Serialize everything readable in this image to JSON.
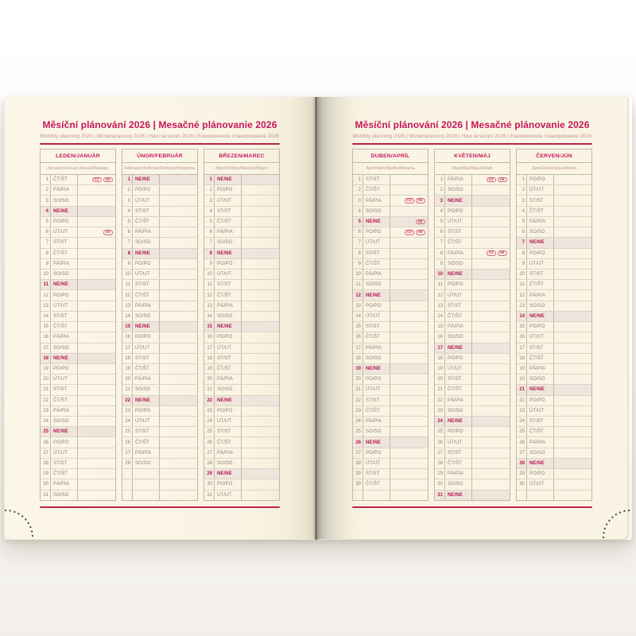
{
  "header": {
    "title": "Měsíční plánování 2026 | Mesačné plánovanie 2026",
    "subtitle": "Monthly planning 2026 | Monatsplanung 2026 | Havi tervezés 2026 | Ежемесячное планирование 2026"
  },
  "colors": {
    "accent": "#c4175c",
    "rule": "#b52450",
    "sunday_text": "#b51a4d",
    "sunday_row_bg": "#efe5dd",
    "day_text": "#8d8275",
    "language_text": "#c4948c",
    "table_border": "#c3b8a5",
    "page_background": "#faf4e4",
    "holiday_badge": "#bb2a55"
  },
  "holiday_badge_labels": [
    "CZ",
    "SK"
  ],
  "months": [
    {
      "name": "LEDEN/JANUÁR",
      "languages": "January/Januar/Január/Январь",
      "rows": [
        [
          "1",
          "ČT/ŠT",
          0,
          [
            "CZ",
            "SK"
          ]
        ],
        [
          "2",
          "PÁ/PIA",
          0,
          []
        ],
        [
          "3",
          "SO/SO",
          0,
          []
        ],
        [
          "4",
          "NE/NE",
          1,
          []
        ],
        [
          "5",
          "PO/PO",
          0,
          []
        ],
        [
          "6",
          "ÚT/UT",
          0,
          [
            "SK"
          ]
        ],
        [
          "7",
          "ST/ST",
          0,
          []
        ],
        [
          "8",
          "ČT/ŠT",
          0,
          []
        ],
        [
          "9",
          "PÁ/PIA",
          0,
          []
        ],
        [
          "10",
          "SO/SO",
          0,
          []
        ],
        [
          "11",
          "NE/NE",
          1,
          []
        ],
        [
          "12",
          "PO/PO",
          0,
          []
        ],
        [
          "13",
          "ÚT/UT",
          0,
          []
        ],
        [
          "14",
          "ST/ST",
          0,
          []
        ],
        [
          "15",
          "ČT/ŠT",
          0,
          []
        ],
        [
          "16",
          "PÁ/PIA",
          0,
          []
        ],
        [
          "17",
          "SO/SO",
          0,
          []
        ],
        [
          "18",
          "NE/NE",
          1,
          []
        ],
        [
          "19",
          "PO/PO",
          0,
          []
        ],
        [
          "20",
          "ÚT/UT",
          0,
          []
        ],
        [
          "21",
          "ST/ST",
          0,
          []
        ],
        [
          "22",
          "ČT/ŠT",
          0,
          []
        ],
        [
          "23",
          "PÁ/PIA",
          0,
          []
        ],
        [
          "24",
          "SO/SO",
          0,
          []
        ],
        [
          "25",
          "NE/NE",
          1,
          []
        ],
        [
          "26",
          "PO/PO",
          0,
          []
        ],
        [
          "27",
          "ÚT/UT",
          0,
          []
        ],
        [
          "28",
          "ST/ST",
          0,
          []
        ],
        [
          "29",
          "ČT/ŠT",
          0,
          []
        ],
        [
          "30",
          "PÁ/PIA",
          0,
          []
        ],
        [
          "31",
          "SO/SO",
          0,
          []
        ]
      ]
    },
    {
      "name": "ÚNOR/FEBRUÁR",
      "languages": "February/Februar/Február/Февраль",
      "rows": [
        [
          "1",
          "NE/NE",
          1,
          []
        ],
        [
          "2",
          "PO/PO",
          0,
          []
        ],
        [
          "3",
          "ÚT/UT",
          0,
          []
        ],
        [
          "4",
          "ST/ST",
          0,
          []
        ],
        [
          "5",
          "ČT/ŠT",
          0,
          []
        ],
        [
          "6",
          "PÁ/PIA",
          0,
          []
        ],
        [
          "7",
          "SO/SO",
          0,
          []
        ],
        [
          "8",
          "NE/NE",
          1,
          []
        ],
        [
          "9",
          "PO/PO",
          0,
          []
        ],
        [
          "10",
          "ÚT/UT",
          0,
          []
        ],
        [
          "11",
          "ST/ST",
          0,
          []
        ],
        [
          "12",
          "ČT/ŠT",
          0,
          []
        ],
        [
          "13",
          "PÁ/PIA",
          0,
          []
        ],
        [
          "14",
          "SO/SO",
          0,
          []
        ],
        [
          "15",
          "NE/NE",
          1,
          []
        ],
        [
          "16",
          "PO/PO",
          0,
          []
        ],
        [
          "17",
          "ÚT/UT",
          0,
          []
        ],
        [
          "18",
          "ST/ST",
          0,
          []
        ],
        [
          "19",
          "ČT/ŠT",
          0,
          []
        ],
        [
          "20",
          "PÁ/PIA",
          0,
          []
        ],
        [
          "21",
          "SO/SO",
          0,
          []
        ],
        [
          "22",
          "NE/NE",
          1,
          []
        ],
        [
          "23",
          "PO/PO",
          0,
          []
        ],
        [
          "24",
          "ÚT/UT",
          0,
          []
        ],
        [
          "25",
          "ST/ST",
          0,
          []
        ],
        [
          "26",
          "ČT/ŠT",
          0,
          []
        ],
        [
          "27",
          "PÁ/PIA",
          0,
          []
        ],
        [
          "28",
          "SO/SO",
          0,
          []
        ],
        [
          "",
          "",
          0,
          []
        ],
        [
          "",
          "",
          0,
          []
        ],
        [
          "",
          "",
          0,
          []
        ]
      ]
    },
    {
      "name": "BŘEZEN/MAREC",
      "languages": "March/März/Március/Март",
      "rows": [
        [
          "1",
          "NE/NE",
          1,
          []
        ],
        [
          "2",
          "PO/PO",
          0,
          []
        ],
        [
          "3",
          "ÚT/UT",
          0,
          []
        ],
        [
          "4",
          "ST/ST",
          0,
          []
        ],
        [
          "5",
          "ČT/ŠT",
          0,
          []
        ],
        [
          "6",
          "PÁ/PIA",
          0,
          []
        ],
        [
          "7",
          "SO/SO",
          0,
          []
        ],
        [
          "8",
          "NE/NE",
          1,
          []
        ],
        [
          "9",
          "PO/PO",
          0,
          []
        ],
        [
          "10",
          "ÚT/UT",
          0,
          []
        ],
        [
          "11",
          "ST/ST",
          0,
          []
        ],
        [
          "12",
          "ČT/ŠT",
          0,
          []
        ],
        [
          "13",
          "PÁ/PIA",
          0,
          []
        ],
        [
          "14",
          "SO/SO",
          0,
          []
        ],
        [
          "15",
          "NE/NE",
          1,
          []
        ],
        [
          "16",
          "PO/PO",
          0,
          []
        ],
        [
          "17",
          "ÚT/UT",
          0,
          []
        ],
        [
          "18",
          "ST/ST",
          0,
          []
        ],
        [
          "19",
          "ČT/ŠT",
          0,
          []
        ],
        [
          "20",
          "PÁ/PIA",
          0,
          []
        ],
        [
          "21",
          "SO/SO",
          0,
          []
        ],
        [
          "22",
          "NE/NE",
          1,
          []
        ],
        [
          "23",
          "PO/PO",
          0,
          []
        ],
        [
          "24",
          "ÚT/UT",
          0,
          []
        ],
        [
          "25",
          "ST/ST",
          0,
          []
        ],
        [
          "26",
          "ČT/ŠT",
          0,
          []
        ],
        [
          "27",
          "PÁ/PIA",
          0,
          []
        ],
        [
          "28",
          "SO/SO",
          0,
          []
        ],
        [
          "29",
          "NE/NE",
          1,
          []
        ],
        [
          "30",
          "PO/PO",
          0,
          []
        ],
        [
          "31",
          "ÚT/UT",
          0,
          []
        ]
      ]
    },
    {
      "name": "DUBEN/APRÍL",
      "languages": "April/April/Április/Апрель",
      "rows": [
        [
          "1",
          "ST/ST",
          0,
          []
        ],
        [
          "2",
          "ČT/ŠT",
          0,
          []
        ],
        [
          "3",
          "PÁ/PIA",
          0,
          [
            "CZ",
            "SK"
          ]
        ],
        [
          "4",
          "SO/SO",
          0,
          []
        ],
        [
          "5",
          "NE/NE",
          1,
          [
            "SK"
          ]
        ],
        [
          "6",
          "PO/PO",
          0,
          [
            "CZ",
            "SK"
          ]
        ],
        [
          "7",
          "ÚT/UT",
          0,
          []
        ],
        [
          "8",
          "ST/ST",
          0,
          []
        ],
        [
          "9",
          "ČT/ŠT",
          0,
          []
        ],
        [
          "10",
          "PÁ/PIA",
          0,
          []
        ],
        [
          "11",
          "SO/SO",
          0,
          []
        ],
        [
          "12",
          "NE/NE",
          1,
          []
        ],
        [
          "13",
          "PO/PO",
          0,
          []
        ],
        [
          "14",
          "ÚT/UT",
          0,
          []
        ],
        [
          "15",
          "ST/ST",
          0,
          []
        ],
        [
          "16",
          "ČT/ŠT",
          0,
          []
        ],
        [
          "17",
          "PÁ/PIA",
          0,
          []
        ],
        [
          "18",
          "SO/SO",
          0,
          []
        ],
        [
          "19",
          "NE/NE",
          1,
          []
        ],
        [
          "20",
          "PO/PO",
          0,
          []
        ],
        [
          "21",
          "ÚT/UT",
          0,
          []
        ],
        [
          "22",
          "ST/ST",
          0,
          []
        ],
        [
          "23",
          "ČT/ŠT",
          0,
          []
        ],
        [
          "24",
          "PÁ/PIA",
          0,
          []
        ],
        [
          "25",
          "SO/SO",
          0,
          []
        ],
        [
          "26",
          "NE/NE",
          1,
          []
        ],
        [
          "27",
          "PO/PO",
          0,
          []
        ],
        [
          "28",
          "ÚT/UT",
          0,
          []
        ],
        [
          "29",
          "ST/ST",
          0,
          []
        ],
        [
          "30",
          "ČT/ŠT",
          0,
          []
        ],
        [
          "",
          "",
          0,
          []
        ]
      ]
    },
    {
      "name": "KVĚTEN/MÁJ",
      "languages": "May/Mai/Május/Май",
      "rows": [
        [
          "1",
          "PÁ/PIA",
          0,
          [
            "CZ",
            "SK"
          ]
        ],
        [
          "2",
          "SO/SO",
          0,
          []
        ],
        [
          "3",
          "NE/NE",
          1,
          []
        ],
        [
          "4",
          "PO/PO",
          0,
          []
        ],
        [
          "5",
          "ÚT/UT",
          0,
          []
        ],
        [
          "6",
          "ST/ST",
          0,
          []
        ],
        [
          "7",
          "ČT/ŠT",
          0,
          []
        ],
        [
          "8",
          "PÁ/PIA",
          0,
          [
            "CZ",
            "SK"
          ]
        ],
        [
          "9",
          "SO/SO",
          0,
          []
        ],
        [
          "10",
          "NE/NE",
          1,
          []
        ],
        [
          "11",
          "PO/PO",
          0,
          []
        ],
        [
          "12",
          "ÚT/UT",
          0,
          []
        ],
        [
          "13",
          "ST/ST",
          0,
          []
        ],
        [
          "14",
          "ČT/ŠT",
          0,
          []
        ],
        [
          "15",
          "PÁ/PIA",
          0,
          []
        ],
        [
          "16",
          "SO/SO",
          0,
          []
        ],
        [
          "17",
          "NE/NE",
          1,
          []
        ],
        [
          "18",
          "PO/PO",
          0,
          []
        ],
        [
          "19",
          "ÚT/UT",
          0,
          []
        ],
        [
          "20",
          "ST/ST",
          0,
          []
        ],
        [
          "21",
          "ČT/ŠT",
          0,
          []
        ],
        [
          "22",
          "PÁ/PIA",
          0,
          []
        ],
        [
          "23",
          "SO/SO",
          0,
          []
        ],
        [
          "24",
          "NE/NE",
          1,
          []
        ],
        [
          "25",
          "PO/PO",
          0,
          []
        ],
        [
          "26",
          "ÚT/UT",
          0,
          []
        ],
        [
          "27",
          "ST/ST",
          0,
          []
        ],
        [
          "28",
          "ČT/ŠT",
          0,
          []
        ],
        [
          "29",
          "PÁ/PIA",
          0,
          []
        ],
        [
          "30",
          "SO/SO",
          0,
          []
        ],
        [
          "31",
          "NE/NE",
          1,
          []
        ]
      ]
    },
    {
      "name": "ČERVEN/JÚN",
      "languages": "June/Juni/Június/Июнь",
      "rows": [
        [
          "1",
          "PO/PO",
          0,
          []
        ],
        [
          "2",
          "ÚT/UT",
          0,
          []
        ],
        [
          "3",
          "ST/ST",
          0,
          []
        ],
        [
          "4",
          "ČT/ŠT",
          0,
          []
        ],
        [
          "5",
          "PÁ/PIA",
          0,
          []
        ],
        [
          "6",
          "SO/SO",
          0,
          []
        ],
        [
          "7",
          "NE/NE",
          1,
          []
        ],
        [
          "8",
          "PO/PO",
          0,
          []
        ],
        [
          "9",
          "ÚT/UT",
          0,
          []
        ],
        [
          "10",
          "ST/ST",
          0,
          []
        ],
        [
          "11",
          "ČT/ŠT",
          0,
          []
        ],
        [
          "12",
          "PÁ/PIA",
          0,
          []
        ],
        [
          "13",
          "SO/SO",
          0,
          []
        ],
        [
          "14",
          "NE/NE",
          1,
          []
        ],
        [
          "15",
          "PO/PO",
          0,
          []
        ],
        [
          "16",
          "ÚT/UT",
          0,
          []
        ],
        [
          "17",
          "ST/ST",
          0,
          []
        ],
        [
          "18",
          "ČT/ŠT",
          0,
          []
        ],
        [
          "19",
          "PÁ/PIA",
          0,
          []
        ],
        [
          "20",
          "SO/SO",
          0,
          []
        ],
        [
          "21",
          "NE/NE",
          1,
          []
        ],
        [
          "22",
          "PO/PO",
          0,
          []
        ],
        [
          "23",
          "ÚT/UT",
          0,
          []
        ],
        [
          "24",
          "ST/ST",
          0,
          []
        ],
        [
          "25",
          "ČT/ŠT",
          0,
          []
        ],
        [
          "26",
          "PÁ/PIA",
          0,
          []
        ],
        [
          "27",
          "SO/SO",
          0,
          []
        ],
        [
          "28",
          "NE/NE",
          1,
          []
        ],
        [
          "29",
          "PO/PO",
          0,
          []
        ],
        [
          "30",
          "ÚT/UT",
          0,
          []
        ],
        [
          "",
          "",
          0,
          []
        ]
      ]
    }
  ]
}
